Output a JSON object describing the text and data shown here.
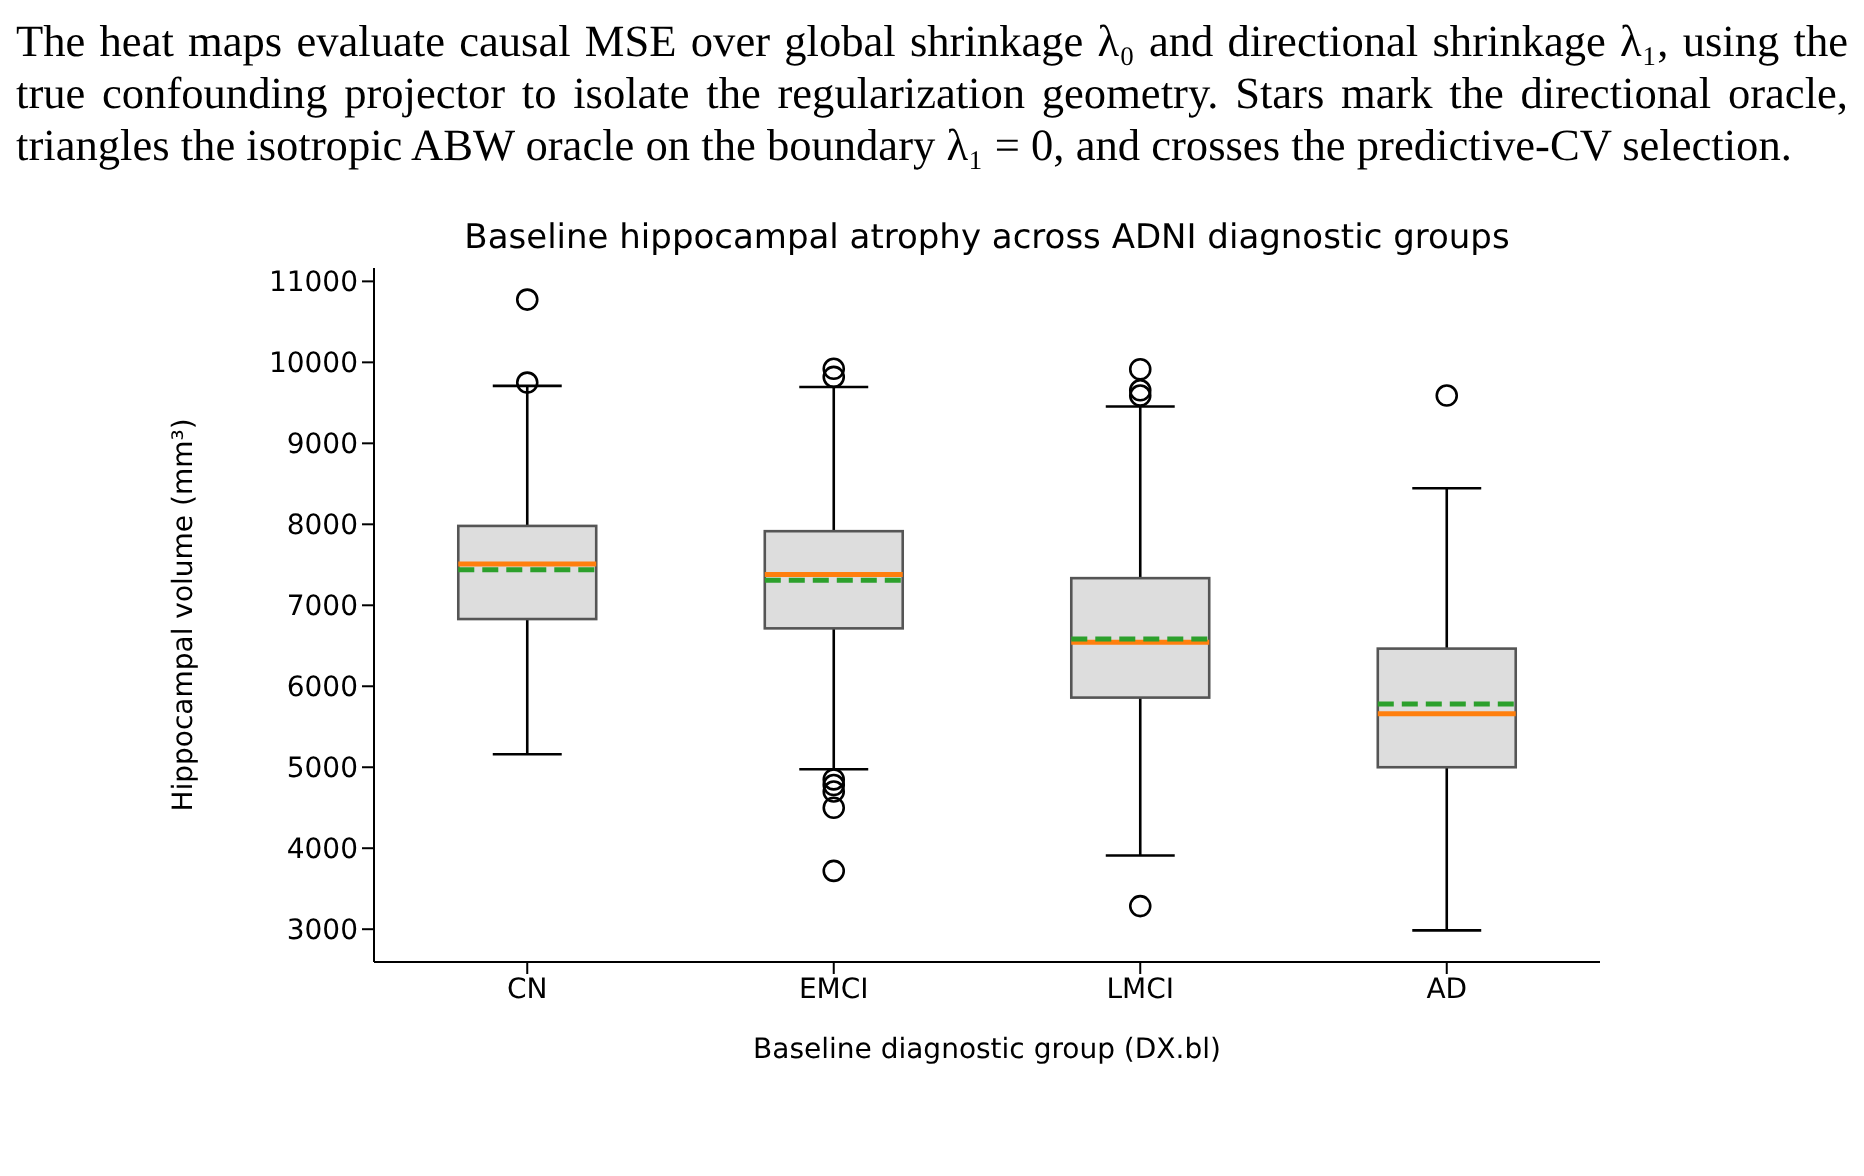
{
  "chart_data": {
    "type": "box",
    "title": "Baseline hippocampal atrophy across ADNI diagnostic groups",
    "xlabel": "Baseline diagnostic group (DX.bl)",
    "ylabel": "Hippocampal volume (mm³)",
    "annotations": [
      "The heat maps evaluate causal MSE over global shrinkage λ₀ and directional shrinkage λ₁, using the true confounding projector to isolate the regularization geometry. Stars mark the directional oracle, triangles the isotropic ABW oracle on the boundary λ₁ = 0, and crosses the predictive-CV selection."
    ],
    "categories": [
      "CN",
      "EMCI",
      "LMCI",
      "AD"
    ],
    "ylim": [
      2595,
      11165
    ],
    "yticks": [
      3000,
      4000,
      5000,
      6000,
      7000,
      8000,
      9000,
      10000,
      11000
    ],
    "series": [
      {
        "color": "#dddddd",
        "boxes": [
          {
            "low": 5160,
            "q1": 6830,
            "median": 7510,
            "q3": 7980,
            "high": 9710,
            "mean": 7440,
            "outliers": [
              10775,
              9750
            ]
          },
          {
            "low": 4975,
            "q1": 6715,
            "median": 7380,
            "q3": 7915,
            "high": 9695,
            "mean": 7310,
            "outliers": [
              9920,
              9820,
              4850,
              4780,
              4700,
              4500,
              3720
            ]
          },
          {
            "low": 3910,
            "q1": 5860,
            "median": 6545,
            "q3": 7335,
            "high": 9455,
            "mean": 6585,
            "outliers": [
              9915,
              9655,
              9590,
              3285
            ]
          },
          {
            "low": 2985,
            "q1": 5000,
            "median": 5660,
            "q3": 6465,
            "high": 8445,
            "mean": 5780,
            "outliers": [
              9590
            ]
          }
        ]
      }
    ]
  }
}
